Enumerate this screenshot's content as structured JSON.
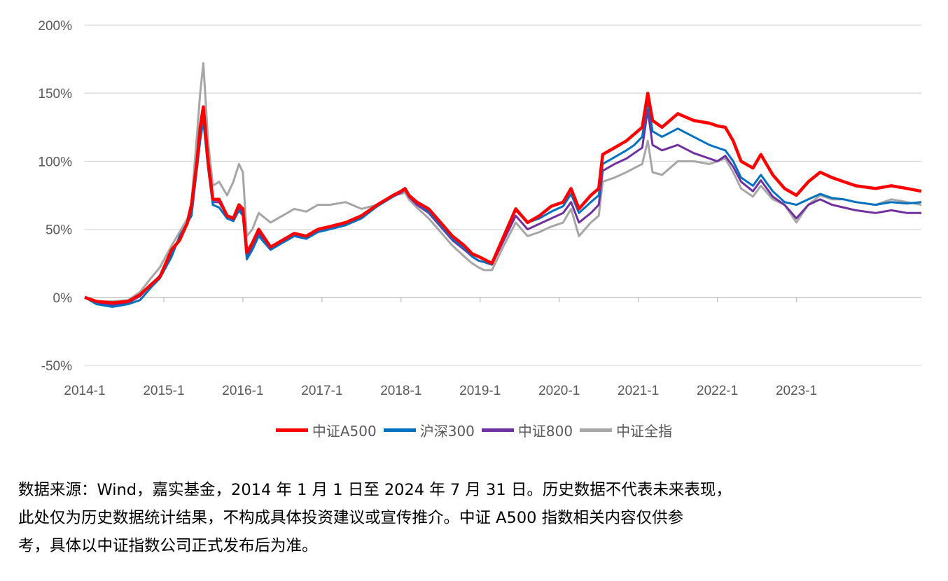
{
  "chart_data": {
    "type": "line",
    "title": "",
    "xlabel": "",
    "ylabel": "",
    "y_unit": "%",
    "ylim": [
      -50,
      200
    ],
    "y_ticks": [
      "-50%",
      "0%",
      "50%",
      "100%",
      "150%",
      "200%"
    ],
    "y_tick_values": [
      -50,
      0,
      50,
      100,
      150,
      200
    ],
    "x_ticks": [
      "2014-1",
      "2015-1",
      "2016-1",
      "2017-1",
      "2018-1",
      "2019-1",
      "2020-1",
      "2021-1",
      "2022-1",
      "2023-1"
    ],
    "xlim": [
      2014.0,
      2024.58
    ],
    "grid": "horizontal",
    "legend_position": "bottom",
    "series": [
      {
        "name": "中证A500",
        "color": "#ff0000",
        "x": [
          2014.0,
          2014.15,
          2014.35,
          2014.55,
          2014.7,
          2014.85,
          2014.95,
          2015.1,
          2015.2,
          2015.3,
          2015.35,
          2015.42,
          2015.46,
          2015.5,
          2015.56,
          2015.62,
          2015.7,
          2015.8,
          2015.88,
          2015.95,
          2016.0,
          2016.05,
          2016.12,
          2016.2,
          2016.35,
          2016.5,
          2016.65,
          2016.8,
          2016.95,
          2017.1,
          2017.3,
          2017.5,
          2017.7,
          2017.9,
          2018.0,
          2018.05,
          2018.1,
          2018.2,
          2018.35,
          2018.5,
          2018.65,
          2018.8,
          2018.9,
          2018.98,
          2019.05,
          2019.15,
          2019.3,
          2019.45,
          2019.6,
          2019.75,
          2019.9,
          2020.05,
          2020.15,
          2020.25,
          2020.4,
          2020.5,
          2020.55,
          2020.7,
          2020.85,
          2020.95,
          2021.05,
          2021.12,
          2021.18,
          2021.3,
          2021.5,
          2021.7,
          2021.9,
          2022.0,
          2022.1,
          2022.2,
          2022.3,
          2022.45,
          2022.55,
          2022.7,
          2022.85,
          2023.0,
          2023.15,
          2023.3,
          2023.45,
          2023.6,
          2023.75,
          2024.0,
          2024.2,
          2024.4,
          2024.58
        ],
        "y": [
          0,
          -3,
          -4,
          -3,
          2,
          10,
          15,
          35,
          42,
          55,
          68,
          100,
          125,
          140,
          100,
          72,
          72,
          60,
          58,
          68,
          65,
          33,
          40,
          50,
          37,
          42,
          47,
          45,
          50,
          52,
          55,
          60,
          68,
          75,
          78,
          80,
          75,
          70,
          65,
          55,
          45,
          38,
          32,
          30,
          28,
          25,
          45,
          65,
          55,
          60,
          67,
          70,
          80,
          65,
          75,
          80,
          105,
          110,
          115,
          120,
          125,
          150,
          130,
          125,
          135,
          130,
          128,
          126,
          125,
          115,
          100,
          95,
          105,
          90,
          80,
          75,
          85,
          92,
          88,
          85,
          82,
          80,
          82,
          80,
          78
        ]
      },
      {
        "name": "沪深300",
        "color": "#0070c0",
        "x": [
          2014.0,
          2014.15,
          2014.35,
          2014.55,
          2014.7,
          2014.85,
          2014.95,
          2015.1,
          2015.2,
          2015.3,
          2015.35,
          2015.42,
          2015.46,
          2015.5,
          2015.56,
          2015.62,
          2015.7,
          2015.8,
          2015.88,
          2015.95,
          2016.0,
          2016.05,
          2016.12,
          2016.2,
          2016.35,
          2016.5,
          2016.65,
          2016.8,
          2016.95,
          2017.1,
          2017.3,
          2017.5,
          2017.7,
          2017.9,
          2018.0,
          2018.05,
          2018.1,
          2018.2,
          2018.35,
          2018.5,
          2018.65,
          2018.8,
          2018.9,
          2018.98,
          2019.05,
          2019.15,
          2019.3,
          2019.45,
          2019.6,
          2019.75,
          2019.9,
          2020.05,
          2020.15,
          2020.25,
          2020.4,
          2020.5,
          2020.55,
          2020.7,
          2020.85,
          2020.95,
          2021.05,
          2021.12,
          2021.18,
          2021.3,
          2021.5,
          2021.7,
          2021.9,
          2022.0,
          2022.1,
          2022.2,
          2022.3,
          2022.45,
          2022.55,
          2022.7,
          2022.85,
          2023.0,
          2023.15,
          2023.3,
          2023.45,
          2023.6,
          2023.75,
          2024.0,
          2024.2,
          2024.4,
          2024.58
        ],
        "y": [
          0,
          -5,
          -7,
          -5,
          -2,
          8,
          14,
          30,
          45,
          55,
          60,
          95,
          115,
          130,
          95,
          68,
          66,
          58,
          56,
          64,
          60,
          28,
          35,
          45,
          35,
          40,
          45,
          43,
          48,
          50,
          53,
          58,
          67,
          74,
          78,
          80,
          75,
          70,
          63,
          53,
          43,
          36,
          30,
          27,
          26,
          24,
          45,
          64,
          55,
          58,
          63,
          67,
          76,
          62,
          70,
          75,
          98,
          103,
          108,
          112,
          118,
          145,
          122,
          118,
          124,
          118,
          112,
          110,
          108,
          100,
          88,
          82,
          90,
          78,
          70,
          68,
          72,
          76,
          73,
          72,
          70,
          68,
          70,
          69,
          70
        ]
      },
      {
        "name": "中证800",
        "color": "#7030a0",
        "x": [
          2014.0,
          2014.15,
          2014.35,
          2014.55,
          2014.7,
          2014.85,
          2014.95,
          2015.1,
          2015.2,
          2015.3,
          2015.35,
          2015.42,
          2015.46,
          2015.5,
          2015.56,
          2015.62,
          2015.7,
          2015.8,
          2015.88,
          2015.95,
          2016.0,
          2016.05,
          2016.12,
          2016.2,
          2016.35,
          2016.5,
          2016.65,
          2016.8,
          2016.95,
          2017.1,
          2017.3,
          2017.5,
          2017.7,
          2017.9,
          2018.0,
          2018.05,
          2018.1,
          2018.2,
          2018.35,
          2018.5,
          2018.65,
          2018.8,
          2018.9,
          2018.98,
          2019.05,
          2019.15,
          2019.3,
          2019.45,
          2019.6,
          2019.75,
          2019.9,
          2020.05,
          2020.15,
          2020.25,
          2020.4,
          2020.5,
          2020.55,
          2020.7,
          2020.85,
          2020.95,
          2021.05,
          2021.12,
          2021.18,
          2021.3,
          2021.5,
          2021.7,
          2021.9,
          2022.0,
          2022.1,
          2022.2,
          2022.3,
          2022.45,
          2022.55,
          2022.7,
          2022.85,
          2023.0,
          2023.15,
          2023.3,
          2023.45,
          2023.6,
          2023.75,
          2024.0,
          2024.2,
          2024.4,
          2024.58
        ],
        "y": [
          0,
          -4,
          -6,
          -4,
          1,
          10,
          16,
          33,
          43,
          55,
          62,
          100,
          122,
          138,
          100,
          70,
          70,
          60,
          57,
          66,
          62,
          30,
          37,
          47,
          36,
          41,
          45,
          44,
          49,
          51,
          54,
          59,
          67,
          74,
          77,
          79,
          74,
          68,
          62,
          52,
          42,
          35,
          30,
          27,
          26,
          24,
          42,
          60,
          50,
          54,
          58,
          62,
          70,
          55,
          62,
          68,
          93,
          98,
          102,
          106,
          110,
          138,
          112,
          108,
          112,
          106,
          102,
          100,
          104,
          96,
          85,
          78,
          86,
          74,
          68,
          58,
          68,
          72,
          68,
          66,
          64,
          62,
          64,
          62,
          62
        ]
      },
      {
        "name": "中证全指",
        "color": "#a6a6a6",
        "x": [
          2014.0,
          2014.15,
          2014.35,
          2014.55,
          2014.7,
          2014.85,
          2014.95,
          2015.1,
          2015.2,
          2015.3,
          2015.35,
          2015.42,
          2015.46,
          2015.5,
          2015.56,
          2015.62,
          2015.7,
          2015.8,
          2015.88,
          2015.95,
          2016.0,
          2016.05,
          2016.12,
          2016.2,
          2016.35,
          2016.5,
          2016.65,
          2016.8,
          2016.95,
          2017.1,
          2017.3,
          2017.5,
          2017.7,
          2017.9,
          2018.0,
          2018.05,
          2018.1,
          2018.2,
          2018.35,
          2018.5,
          2018.65,
          2018.8,
          2018.9,
          2018.98,
          2019.05,
          2019.15,
          2019.3,
          2019.45,
          2019.6,
          2019.75,
          2019.9,
          2020.05,
          2020.15,
          2020.25,
          2020.4,
          2020.5,
          2020.55,
          2020.7,
          2020.85,
          2020.95,
          2021.05,
          2021.12,
          2021.18,
          2021.3,
          2021.5,
          2021.7,
          2021.9,
          2022.0,
          2022.1,
          2022.2,
          2022.3,
          2022.45,
          2022.55,
          2022.7,
          2022.85,
          2023.0,
          2023.15,
          2023.3,
          2023.45,
          2023.6,
          2023.75,
          2024.0,
          2024.2,
          2024.4,
          2024.58
        ],
        "y": [
          0,
          -3,
          -3,
          -2,
          4,
          15,
          22,
          38,
          48,
          58,
          70,
          120,
          150,
          172,
          115,
          82,
          85,
          75,
          85,
          98,
          92,
          45,
          50,
          62,
          55,
          60,
          65,
          63,
          68,
          68,
          70,
          65,
          68,
          75,
          76,
          77,
          72,
          66,
          58,
          48,
          38,
          30,
          25,
          22,
          20,
          20,
          38,
          55,
          45,
          48,
          52,
          55,
          65,
          45,
          55,
          60,
          85,
          88,
          92,
          95,
          98,
          115,
          92,
          90,
          100,
          100,
          98,
          100,
          102,
          92,
          80,
          74,
          82,
          72,
          68,
          55,
          68,
          75,
          72,
          72,
          70,
          68,
          72,
          70,
          68
        ]
      }
    ]
  },
  "legend": {
    "items": [
      {
        "label": "中证A500",
        "color": "#ff0000"
      },
      {
        "label": "沪深300",
        "color": "#0070c0"
      },
      {
        "label": "中证800",
        "color": "#7030a0"
      },
      {
        "label": "中证全指",
        "color": "#a6a6a6"
      }
    ]
  },
  "footnote": {
    "lines": [
      "数据来源：Wind，嘉实基金，2014 年 1 月 1 日至 2024 年 7 月 31 日。历史数据不代表未来表现，",
      "此处仅为历史数据统计结果，不构成具体投资建议或宣传推介。中证 A500 指数相关内容仅供参",
      "考，具体以中证指数公司正式发布后为准。"
    ]
  }
}
